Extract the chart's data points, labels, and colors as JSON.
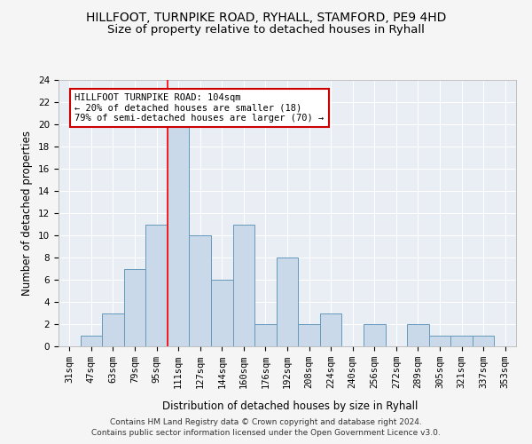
{
  "title": "HILLFOOT, TURNPIKE ROAD, RYHALL, STAMFORD, PE9 4HD",
  "subtitle": "Size of property relative to detached houses in Ryhall",
  "xlabel": "Distribution of detached houses by size in Ryhall",
  "ylabel": "Number of detached properties",
  "bar_labels": [
    "31sqm",
    "47sqm",
    "63sqm",
    "79sqm",
    "95sqm",
    "111sqm",
    "127sqm",
    "144sqm",
    "160sqm",
    "176sqm",
    "192sqm",
    "208sqm",
    "224sqm",
    "240sqm",
    "256sqm",
    "272sqm",
    "289sqm",
    "305sqm",
    "321sqm",
    "337sqm",
    "353sqm"
  ],
  "bar_values": [
    0,
    1,
    3,
    7,
    11,
    20,
    10,
    6,
    11,
    2,
    8,
    2,
    3,
    0,
    2,
    0,
    2,
    1,
    1,
    1,
    0
  ],
  "bar_color": "#c9d9ea",
  "bar_edge_color": "#6699bb",
  "red_line_x": 4.5,
  "annotation_text": "HILLFOOT TURNPIKE ROAD: 104sqm\n← 20% of detached houses are smaller (18)\n79% of semi-detached houses are larger (70) →",
  "annotation_box_color": "#ffffff",
  "annotation_box_edge": "#cc0000",
  "ylim": [
    0,
    24
  ],
  "yticks": [
    0,
    2,
    4,
    6,
    8,
    10,
    12,
    14,
    16,
    18,
    20,
    22,
    24
  ],
  "footer": "Contains HM Land Registry data © Crown copyright and database right 2024.\nContains public sector information licensed under the Open Government Licence v3.0.",
  "plot_bg_color": "#e8eef4",
  "fig_bg_color": "#f5f5f5",
  "grid_color": "#ffffff",
  "title_fontsize": 10,
  "subtitle_fontsize": 9.5,
  "axis_label_fontsize": 8.5,
  "tick_fontsize": 7.5,
  "annotation_fontsize": 7.5,
  "footer_fontsize": 6.5
}
